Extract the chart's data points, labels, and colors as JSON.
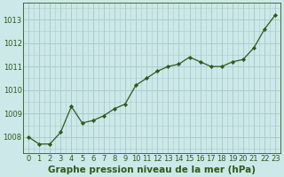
{
  "x": [
    0,
    1,
    2,
    3,
    4,
    5,
    6,
    7,
    8,
    9,
    10,
    11,
    12,
    13,
    14,
    15,
    16,
    17,
    18,
    19,
    20,
    21,
    22,
    23
  ],
  "y": [
    1008.0,
    1007.7,
    1007.7,
    1008.2,
    1009.3,
    1008.6,
    1008.7,
    1008.9,
    1009.2,
    1009.4,
    1010.2,
    1010.5,
    1010.8,
    1011.0,
    1011.1,
    1011.4,
    1011.2,
    1011.0,
    1011.0,
    1011.2,
    1011.3,
    1011.8,
    1012.6,
    1013.2
  ],
  "line_color": "#2d5a1b",
  "marker_color": "#2d5a1b",
  "bg_color": "#cce8e8",
  "grid_color": "#aacccc",
  "text_color": "#2d5a1b",
  "xlabel": "Graphe pression niveau de la mer (hPa)",
  "xlabel_fontsize": 7.5,
  "ytick_labels": [
    "1008",
    "1009",
    "1010",
    "1011",
    "1012",
    "1013"
  ],
  "yticks": [
    1008,
    1009,
    1010,
    1011,
    1012,
    1013
  ],
  "ylim": [
    1007.3,
    1013.7
  ],
  "xlim": [
    -0.5,
    23.5
  ],
  "xticks": [
    0,
    1,
    2,
    3,
    4,
    5,
    6,
    7,
    8,
    9,
    10,
    11,
    12,
    13,
    14,
    15,
    16,
    17,
    18,
    19,
    20,
    21,
    22,
    23
  ],
  "tick_fontsize": 6.0
}
